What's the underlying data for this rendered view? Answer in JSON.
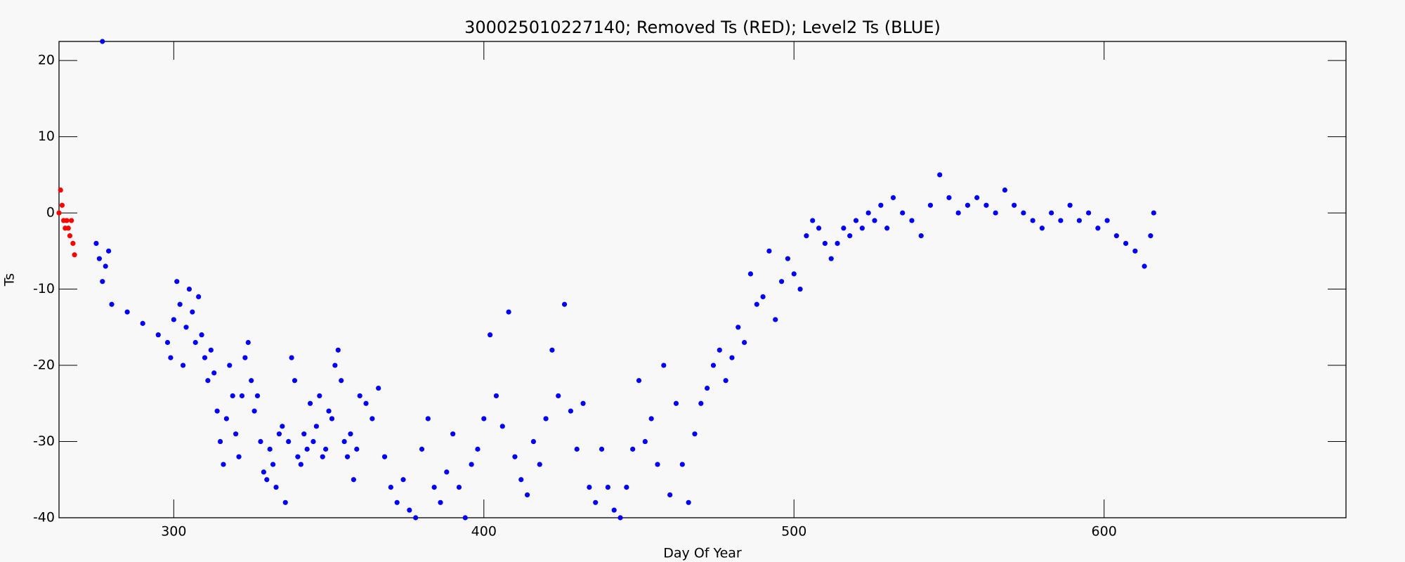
{
  "chart_data": {
    "type": "scatter",
    "title": "300025010227140; Removed Ts (RED); Level2 Ts (BLUE)",
    "x_label": "Day Of Year",
    "y_label": "Ts",
    "xlim": [
      263,
      678
    ],
    "xticks": [
      300,
      400,
      500,
      600
    ],
    "ylim": [
      -40,
      22.5
    ],
    "yticks": [
      -40,
      -30,
      -20,
      -10,
      0,
      10,
      20
    ],
    "series": [
      {
        "name": "Removed Ts",
        "color": "#ff0000",
        "x": [
          263,
          263.5,
          264,
          264.5,
          265,
          265.5,
          266,
          266.5,
          267,
          267.5,
          268
        ],
        "values": [
          0,
          3,
          1,
          -1,
          -2,
          -1,
          -2,
          -3,
          -1,
          -4,
          -5.5
        ]
      },
      {
        "name": "Level2 Ts",
        "color": "#0000ff",
        "x": [
          277,
          275,
          276,
          277,
          278,
          279,
          280,
          285,
          290,
          295,
          298,
          299,
          300,
          301,
          302,
          303,
          304,
          305,
          306,
          307,
          308,
          309,
          310,
          311,
          312,
          313,
          314,
          315,
          316,
          317,
          318,
          319,
          320,
          321,
          322,
          323,
          324,
          325,
          326,
          327,
          328,
          329,
          330,
          331,
          332,
          333,
          334,
          335,
          336,
          337,
          338,
          339,
          340,
          341,
          342,
          343,
          344,
          345,
          346,
          347,
          348,
          349,
          350,
          351,
          352,
          353,
          354,
          355,
          356,
          357,
          358,
          359,
          360,
          362,
          364,
          366,
          368,
          370,
          372,
          374,
          376,
          378,
          380,
          382,
          384,
          386,
          388,
          390,
          392,
          394,
          396,
          398,
          400,
          402,
          404,
          406,
          408,
          410,
          412,
          414,
          416,
          418,
          420,
          422,
          424,
          426,
          428,
          430,
          432,
          434,
          436,
          438,
          440,
          442,
          444,
          446,
          448,
          450,
          452,
          454,
          456,
          458,
          460,
          462,
          464,
          466,
          468,
          470,
          472,
          474,
          476,
          478,
          480,
          482,
          484,
          486,
          488,
          490,
          492,
          494,
          496,
          498,
          500,
          502,
          504,
          506,
          508,
          510,
          512,
          514,
          516,
          518,
          520,
          522,
          524,
          526,
          528,
          530,
          532,
          535,
          538,
          541,
          544,
          547,
          550,
          553,
          556,
          559,
          562,
          565,
          568,
          571,
          574,
          577,
          580,
          583,
          586,
          589,
          592,
          595,
          598,
          601,
          604,
          607,
          610,
          613,
          615,
          616
        ],
        "values": [
          22.5,
          -4,
          -6,
          -9,
          -7,
          -5,
          -12,
          -13,
          -14.5,
          -16,
          -17,
          -19,
          -14,
          -9,
          -12,
          -20,
          -15,
          -10,
          -13,
          -17,
          -11,
          -16,
          -19,
          -22,
          -18,
          -21,
          -26,
          -30,
          -33,
          -27,
          -20,
          -24,
          -29,
          -32,
          -24,
          -19,
          -17,
          -22,
          -26,
          -24,
          -30,
          -34,
          -35,
          -31,
          -33,
          -36,
          -29,
          -28,
          -38,
          -30,
          -19,
          -22,
          -32,
          -33,
          -29,
          -31,
          -25,
          -30,
          -28,
          -24,
          -32,
          -31,
          -26,
          -27,
          -20,
          -18,
          -22,
          -30,
          -32,
          -29,
          -35,
          -31,
          -24,
          -25,
          -27,
          -23,
          -32,
          -36,
          -38,
          -35,
          -39,
          -40,
          -31,
          -27,
          -36,
          -38,
          -34,
          -29,
          -36,
          -40,
          -33,
          -31,
          -27,
          -16,
          -24,
          -28,
          -13,
          -32,
          -35,
          -37,
          -30,
          -33,
          -27,
          -18,
          -24,
          -12,
          -26,
          -31,
          -25,
          -36,
          -38,
          -31,
          -36,
          -39,
          -40,
          -36,
          -31,
          -22,
          -30,
          -27,
          -33,
          -20,
          -37,
          -25,
          -33,
          -38,
          -29,
          -25,
          -23,
          -20,
          -18,
          -22,
          -19,
          -15,
          -17,
          -8,
          -12,
          -11,
          -5,
          -14,
          -9,
          -6,
          -8,
          -10,
          -3,
          -1,
          -2,
          -4,
          -6,
          -4,
          -2,
          -3,
          -1,
          -2,
          0,
          -1,
          1,
          -2,
          2,
          0,
          -1,
          -3,
          1,
          5,
          2,
          0,
          1,
          2,
          1,
          0,
          3,
          1,
          0,
          -1,
          -2,
          0,
          -1,
          1,
          -1,
          0,
          -2,
          -1,
          -3,
          -4,
          -5,
          -7,
          -3,
          0
        ]
      }
    ]
  }
}
